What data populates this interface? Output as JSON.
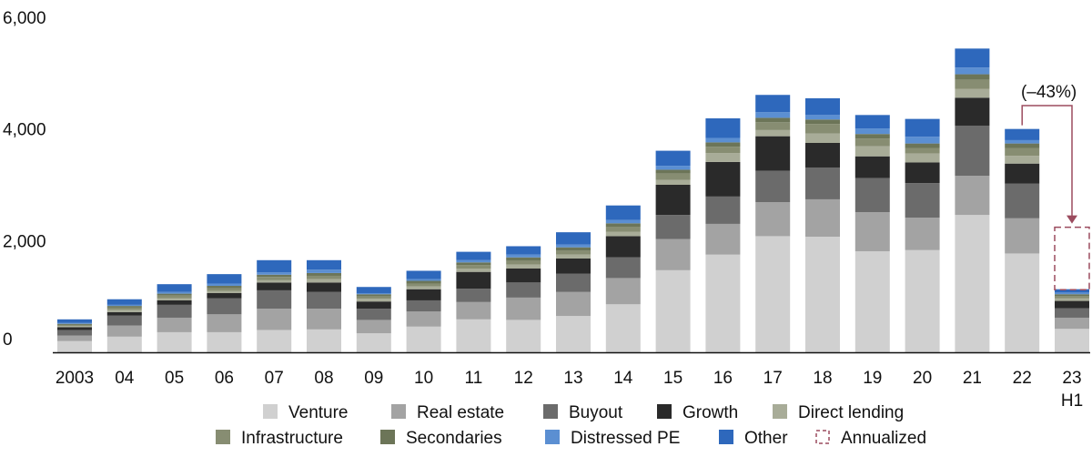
{
  "chart_data": {
    "type": "bar",
    "stacked": true,
    "ylim": [
      0,
      6000
    ],
    "yticks": [
      0,
      2000,
      4000,
      6000
    ],
    "ytick_labels": [
      "0",
      "2,000",
      "4,000",
      "6,000"
    ],
    "grid": false,
    "legend_position": "bottom",
    "categories": [
      "2003",
      "04",
      "05",
      "06",
      "07",
      "08",
      "09",
      "10",
      "11",
      "12",
      "13",
      "14",
      "15",
      "16",
      "17",
      "18",
      "19",
      "20",
      "21",
      "22",
      "23"
    ],
    "category_sublabels": {
      "23": "H1"
    },
    "series": [
      {
        "name": "Venture",
        "color": "#d0d0d0",
        "values": [
          200,
          280,
          360,
          360,
          400,
          410,
          340,
          460,
          590,
          580,
          650,
          860,
          1470,
          1750,
          2080,
          2070,
          1810,
          1830,
          2460,
          1770,
          420
        ]
      },
      {
        "name": "Real estate",
        "color": "#a3a3a3",
        "values": [
          100,
          200,
          260,
          320,
          380,
          370,
          240,
          270,
          310,
          400,
          430,
          470,
          560,
          550,
          610,
          670,
          700,
          580,
          700,
          630,
          200
        ]
      },
      {
        "name": "Buyout",
        "color": "#6b6b6b",
        "values": [
          100,
          180,
          230,
          290,
          330,
          300,
          200,
          200,
          240,
          270,
          330,
          370,
          430,
          490,
          560,
          570,
          610,
          620,
          900,
          620,
          170
        ]
      },
      {
        "name": "Growth",
        "color": "#2a2a2a",
        "values": [
          50,
          60,
          80,
          90,
          140,
          170,
          130,
          200,
          300,
          250,
          270,
          380,
          540,
          620,
          620,
          440,
          390,
          370,
          500,
          360,
          130
        ]
      },
      {
        "name": "Direct lending",
        "color": "#a8ac98",
        "values": [
          20,
          40,
          40,
          40,
          40,
          60,
          50,
          50,
          60,
          70,
          70,
          80,
          90,
          160,
          110,
          170,
          180,
          160,
          160,
          140,
          50
        ]
      },
      {
        "name": "Infrastructure",
        "color": "#878d72",
        "values": [
          20,
          40,
          50,
          50,
          60,
          60,
          40,
          50,
          60,
          70,
          70,
          90,
          110,
          110,
          140,
          170,
          140,
          100,
          160,
          140,
          40
        ]
      },
      {
        "name": "Secondaries",
        "color": "#6c7558",
        "values": [
          20,
          30,
          30,
          40,
          40,
          50,
          40,
          50,
          50,
          60,
          60,
          60,
          70,
          80,
          80,
          80,
          80,
          80,
          100,
          80,
          30
        ]
      },
      {
        "name": "Distressed PE",
        "color": "#5b8fd2",
        "values": [
          20,
          20,
          30,
          40,
          40,
          60,
          20,
          30,
          40,
          50,
          50,
          60,
          70,
          80,
          100,
          80,
          100,
          120,
          120,
          60,
          30
        ]
      },
      {
        "name": "Other",
        "color": "#2e68bc",
        "values": [
          60,
          100,
          140,
          170,
          220,
          170,
          110,
          150,
          150,
          150,
          220,
          260,
          270,
          350,
          310,
          300,
          240,
          320,
          340,
          200,
          60
        ]
      }
    ],
    "annualized": {
      "name": "Annualized",
      "category": "23",
      "from": 1120,
      "to": 2240,
      "color": "#9b4b5e"
    },
    "change_annotation": {
      "text": "(–43%)",
      "from_category": "22",
      "to_category": "23",
      "color": "#9b4b5e"
    },
    "legend_rows": [
      [
        "Venture",
        "Real estate",
        "Buyout",
        "Growth",
        "Direct lending"
      ],
      [
        "Infrastructure",
        "Secondaries",
        "Distressed PE",
        "Other",
        "Annualized"
      ]
    ]
  }
}
